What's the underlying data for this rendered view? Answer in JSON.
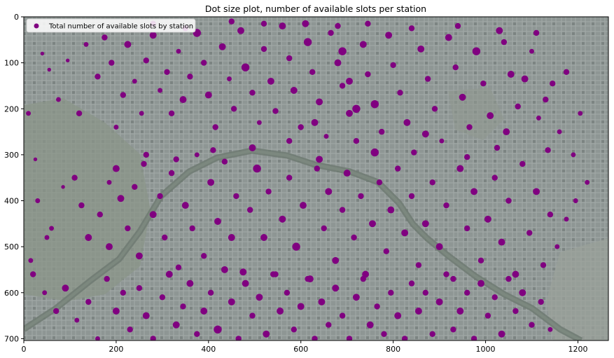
{
  "chart_data": {
    "type": "scatter",
    "title": "Dot size plot, number of available slots per station",
    "xlabel": "",
    "ylabel": "",
    "xlim": [
      0,
      1266
    ],
    "ylim": [
      704,
      0
    ],
    "y_inverted": true,
    "x_ticks": [
      0,
      200,
      400,
      600,
      800,
      1000,
      1200
    ],
    "y_ticks": [
      0,
      100,
      200,
      300,
      400,
      500,
      600,
      700
    ],
    "grid": false,
    "legend_position": "top-left",
    "background": "satellite image of Paris (gray urban texture, Seine river, parks)",
    "marker_color": "#800080",
    "series": [
      {
        "name": "Total number of available slots by station",
        "points": [
          [
            10,
            210,
            3
          ],
          [
            25,
            310,
            2
          ],
          [
            40,
            80,
            2
          ],
          [
            55,
            115,
            2
          ],
          [
            75,
            180,
            3
          ],
          [
            95,
            95,
            2
          ],
          [
            120,
            210,
            4
          ],
          [
            135,
            60,
            3
          ],
          [
            160,
            130,
            4
          ],
          [
            175,
            45,
            4
          ],
          [
            190,
            100,
            4
          ],
          [
            200,
            240,
            3
          ],
          [
            215,
            170,
            4
          ],
          [
            225,
            60,
            5
          ],
          [
            240,
            140,
            3
          ],
          [
            255,
            210,
            3
          ],
          [
            265,
            95,
            4
          ],
          [
            280,
            40,
            5
          ],
          [
            295,
            160,
            3
          ],
          [
            310,
            120,
            4
          ],
          [
            320,
            210,
            4
          ],
          [
            335,
            75,
            3
          ],
          [
            345,
            180,
            5
          ],
          [
            360,
            130,
            4
          ],
          [
            375,
            35,
            6
          ],
          [
            390,
            100,
            4
          ],
          [
            400,
            170,
            5
          ],
          [
            415,
            240,
            4
          ],
          [
            430,
            65,
            5
          ],
          [
            445,
            135,
            3
          ],
          [
            455,
            200,
            4
          ],
          [
            470,
            30,
            5
          ],
          [
            480,
            110,
            6
          ],
          [
            495,
            165,
            4
          ],
          [
            510,
            230,
            3
          ],
          [
            520,
            70,
            4
          ],
          [
            535,
            140,
            5
          ],
          [
            545,
            205,
            4
          ],
          [
            560,
            20,
            5
          ],
          [
            575,
            90,
            4
          ],
          [
            585,
            160,
            5
          ],
          [
            600,
            240,
            4
          ],
          [
            615,
            55,
            6
          ],
          [
            625,
            120,
            4
          ],
          [
            640,
            185,
            5
          ],
          [
            655,
            260,
            3
          ],
          [
            665,
            35,
            4
          ],
          [
            680,
            100,
            5
          ],
          [
            690,
            150,
            4
          ],
          [
            705,
            210,
            5
          ],
          [
            720,
            270,
            4
          ],
          [
            735,
            60,
            5
          ],
          [
            745,
            125,
            4
          ],
          [
            760,
            190,
            6
          ],
          [
            775,
            250,
            4
          ],
          [
            790,
            40,
            5
          ],
          [
            800,
            105,
            4
          ],
          [
            815,
            165,
            4
          ],
          [
            830,
            230,
            5
          ],
          [
            845,
            295,
            4
          ],
          [
            860,
            70,
            5
          ],
          [
            875,
            135,
            4
          ],
          [
            890,
            200,
            4
          ],
          [
            905,
            270,
            3
          ],
          [
            920,
            45,
            5
          ],
          [
            935,
            110,
            4
          ],
          [
            950,
            175,
            5
          ],
          [
            965,
            240,
            4
          ],
          [
            980,
            75,
            6
          ],
          [
            995,
            145,
            4
          ],
          [
            1010,
            215,
            5
          ],
          [
            1025,
            285,
            4
          ],
          [
            1040,
            55,
            4
          ],
          [
            1055,
            125,
            5
          ],
          [
            1070,
            195,
            4
          ],
          [
            1085,
            135,
            5
          ],
          [
            1100,
            75,
            3
          ],
          [
            1115,
            220,
            3
          ],
          [
            1130,
            180,
            4
          ],
          [
            1145,
            145,
            4
          ],
          [
            1160,
            250,
            3
          ],
          [
            1175,
            120,
            4
          ],
          [
            1190,
            300,
            3
          ],
          [
            1205,
            210,
            3
          ],
          [
            1220,
            360,
            3
          ],
          [
            30,
            400,
            3
          ],
          [
            60,
            460,
            3
          ],
          [
            85,
            370,
            2
          ],
          [
            110,
            350,
            4
          ],
          [
            140,
            480,
            5
          ],
          [
            165,
            430,
            4
          ],
          [
            185,
            500,
            5
          ],
          [
            200,
            330,
            5
          ],
          [
            210,
            395,
            5
          ],
          [
            225,
            460,
            4
          ],
          [
            240,
            370,
            4
          ],
          [
            250,
            520,
            5
          ],
          [
            265,
            300,
            4
          ],
          [
            280,
            430,
            5
          ],
          [
            295,
            390,
            4
          ],
          [
            305,
            480,
            4
          ],
          [
            320,
            340,
            4
          ],
          [
            335,
            545,
            4
          ],
          [
            350,
            410,
            5
          ],
          [
            365,
            460,
            4
          ],
          [
            375,
            300,
            3
          ],
          [
            390,
            520,
            4
          ],
          [
            405,
            360,
            5
          ],
          [
            420,
            445,
            5
          ],
          [
            435,
            315,
            4
          ],
          [
            450,
            480,
            5
          ],
          [
            460,
            390,
            4
          ],
          [
            475,
            555,
            5
          ],
          [
            490,
            420,
            4
          ],
          [
            505,
            330,
            6
          ],
          [
            520,
            480,
            5
          ],
          [
            530,
            380,
            4
          ],
          [
            545,
            560,
            4
          ],
          [
            560,
            440,
            5
          ],
          [
            575,
            350,
            4
          ],
          [
            590,
            500,
            6
          ],
          [
            605,
            410,
            5
          ],
          [
            620,
            570,
            5
          ],
          [
            635,
            330,
            4
          ],
          [
            650,
            460,
            4
          ],
          [
            660,
            380,
            5
          ],
          [
            675,
            530,
            5
          ],
          [
            690,
            420,
            4
          ],
          [
            700,
            340,
            5
          ],
          [
            715,
            480,
            4
          ],
          [
            730,
            390,
            4
          ],
          [
            740,
            560,
            5
          ],
          [
            755,
            450,
            5
          ],
          [
            770,
            360,
            4
          ],
          [
            785,
            510,
            4
          ],
          [
            795,
            420,
            5
          ],
          [
            810,
            330,
            4
          ],
          [
            825,
            470,
            5
          ],
          [
            840,
            390,
            4
          ],
          [
            855,
            540,
            4
          ],
          [
            870,
            450,
            5
          ],
          [
            885,
            360,
            4
          ],
          [
            900,
            500,
            5
          ],
          [
            915,
            410,
            4
          ],
          [
            930,
            570,
            4
          ],
          [
            945,
            330,
            5
          ],
          [
            960,
            460,
            4
          ],
          [
            975,
            380,
            5
          ],
          [
            990,
            530,
            4
          ],
          [
            1005,
            440,
            5
          ],
          [
            1020,
            350,
            4
          ],
          [
            1035,
            490,
            5
          ],
          [
            1050,
            400,
            4
          ],
          [
            1065,
            560,
            5
          ],
          [
            1080,
            320,
            4
          ],
          [
            1095,
            470,
            4
          ],
          [
            1110,
            380,
            5
          ],
          [
            1125,
            540,
            4
          ],
          [
            1140,
            430,
            4
          ],
          [
            1155,
            500,
            3
          ],
          [
            1175,
            440,
            3
          ],
          [
            1195,
            400,
            3
          ],
          [
            20,
            560,
            4
          ],
          [
            45,
            600,
            3
          ],
          [
            70,
            640,
            4
          ],
          [
            90,
            590,
            5
          ],
          [
            115,
            660,
            3
          ],
          [
            140,
            620,
            4
          ],
          [
            160,
            700,
            3
          ],
          [
            180,
            570,
            4
          ],
          [
            200,
            640,
            5
          ],
          [
            215,
            600,
            4
          ],
          [
            230,
            680,
            4
          ],
          [
            250,
            590,
            4
          ],
          [
            265,
            650,
            5
          ],
          [
            280,
            700,
            4
          ],
          [
            300,
            610,
            4
          ],
          [
            315,
            560,
            5
          ],
          [
            330,
            670,
            5
          ],
          [
            345,
            630,
            4
          ],
          [
            360,
            580,
            5
          ],
          [
            375,
            690,
            4
          ],
          [
            390,
            640,
            5
          ],
          [
            405,
            600,
            4
          ],
          [
            420,
            680,
            6
          ],
          [
            435,
            550,
            5
          ],
          [
            450,
            620,
            5
          ],
          [
            465,
            700,
            4
          ],
          [
            480,
            580,
            5
          ],
          [
            495,
            650,
            4
          ],
          [
            510,
            610,
            5
          ],
          [
            525,
            690,
            5
          ],
          [
            540,
            560,
            4
          ],
          [
            555,
            640,
            5
          ],
          [
            570,
            600,
            4
          ],
          [
            585,
            680,
            4
          ],
          [
            600,
            630,
            5
          ],
          [
            615,
            570,
            4
          ],
          [
            630,
            700,
            4
          ],
          [
            645,
            620,
            5
          ],
          [
            660,
            670,
            4
          ],
          [
            675,
            590,
            5
          ],
          [
            690,
            650,
            4
          ],
          [
            705,
            700,
            4
          ],
          [
            720,
            610,
            5
          ],
          [
            735,
            570,
            4
          ],
          [
            750,
            670,
            5
          ],
          [
            765,
            630,
            4
          ],
          [
            780,
            690,
            4
          ],
          [
            795,
            600,
            4
          ],
          [
            810,
            650,
            5
          ],
          [
            825,
            700,
            4
          ],
          [
            840,
            580,
            4
          ],
          [
            855,
            640,
            5
          ],
          [
            870,
            600,
            4
          ],
          [
            885,
            690,
            4
          ],
          [
            900,
            620,
            5
          ],
          [
            915,
            560,
            4
          ],
          [
            930,
            680,
            4
          ],
          [
            945,
            640,
            5
          ],
          [
            960,
            600,
            4
          ],
          [
            975,
            700,
            4
          ],
          [
            990,
            580,
            5
          ],
          [
            1005,
            650,
            4
          ],
          [
            1020,
            610,
            4
          ],
          [
            1035,
            690,
            5
          ],
          [
            1050,
            570,
            4
          ],
          [
            1065,
            640,
            4
          ],
          [
            1080,
            600,
            5
          ],
          [
            1100,
            670,
            4
          ],
          [
            1120,
            620,
            4
          ],
          [
            1140,
            680,
            3
          ],
          [
            680,
            20,
            4
          ],
          [
            690,
            75,
            6
          ],
          [
            705,
            140,
            5
          ],
          [
            720,
            200,
            6
          ],
          [
            630,
            230,
            5
          ],
          [
            575,
            270,
            4
          ],
          [
            495,
            285,
            5
          ],
          [
            410,
            290,
            4
          ],
          [
            330,
            310,
            4
          ],
          [
            260,
            320,
            4
          ],
          [
            185,
            360,
            3
          ],
          [
            125,
            410,
            4
          ],
          [
            50,
            480,
            3
          ],
          [
            15,
            530,
            3
          ],
          [
            610,
            15,
            5
          ],
          [
            450,
            10,
            4
          ],
          [
            350,
            25,
            4
          ],
          [
            280,
            15,
            4
          ],
          [
            520,
            15,
            4
          ],
          [
            745,
            15,
            4
          ],
          [
            840,
            25,
            4
          ],
          [
            940,
            20,
            4
          ],
          [
            1030,
            30,
            5
          ],
          [
            1110,
            35,
            4
          ],
          [
            640,
            310,
            5
          ],
          [
            760,
            295,
            6
          ],
          [
            870,
            255,
            5
          ],
          [
            960,
            305,
            4
          ],
          [
            1045,
            250,
            5
          ],
          [
            1135,
            290,
            4
          ]
        ]
      }
    ]
  }
}
